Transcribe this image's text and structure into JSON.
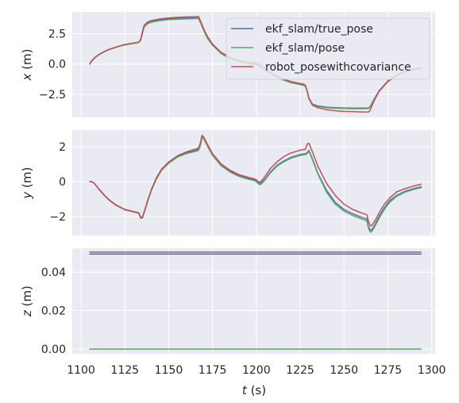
{
  "chart_data": {
    "type": "line",
    "shared_x": {
      "label_var": "t",
      "label_unit": " (s)",
      "range": [
        1095,
        1302
      ],
      "ticks": [
        1100,
        1125,
        1150,
        1175,
        1200,
        1225,
        1250,
        1275,
        1300
      ],
      "tick_labels": [
        "1100",
        "1125",
        "1150",
        "1175",
        "1200",
        "1225",
        "1250",
        "1275",
        "1300"
      ]
    },
    "colors": {
      "ekf_slam/true_pose": "#4c72b0",
      "ekf_slam/pose": "#55a868",
      "robot_posewithcovariance": "#c44e52"
    },
    "legend": {
      "placement": "top-right",
      "entries": [
        "ekf_slam/true_pose",
        "ekf_slam/pose",
        "robot_posewithcovariance"
      ]
    },
    "subplots": [
      {
        "id": "x",
        "ylabel_var": "x",
        "ylabel_unit": " (m)",
        "ylim": [
          -4.4,
          4.3
        ],
        "yticks": [
          2.5,
          0.0,
          -2.5
        ],
        "ytick_labels": [
          "2.5",
          "0.0",
          "−2.5"
        ],
        "series": [
          {
            "name": "ekf_slam/true_pose",
            "x": [
              1105,
              1106,
              1108,
              1111,
              1115,
              1120,
              1125,
              1130,
              1133,
              1134,
              1135,
              1136,
              1138,
              1140,
              1145,
              1150,
              1155,
              1160,
              1165,
              1167,
              1168,
              1170,
              1172,
              1175,
              1180,
              1185,
              1190,
              1195,
              1200,
              1202,
              1205,
              1210,
              1215,
              1220,
              1225,
              1227,
              1228,
              1229,
              1230,
              1232,
              1235,
              1240,
              1245,
              1250,
              1255,
              1260,
              1264,
              1265,
              1266,
              1268,
              1270,
              1275,
              1280,
              1285,
              1290,
              1294
            ],
            "y": [
              0.0,
              0.25,
              0.55,
              0.85,
              1.15,
              1.4,
              1.6,
              1.72,
              1.8,
              2.0,
              2.6,
              3.15,
              3.4,
              3.52,
              3.65,
              3.72,
              3.76,
              3.78,
              3.8,
              3.8,
              3.5,
              2.8,
              2.2,
              1.6,
              0.9,
              0.5,
              0.25,
              0.1,
              0.0,
              -0.15,
              -0.45,
              -0.9,
              -1.25,
              -1.5,
              -1.65,
              -1.7,
              -1.8,
              -2.2,
              -2.8,
              -3.3,
              -3.45,
              -3.55,
              -3.6,
              -3.62,
              -3.63,
              -3.63,
              -3.62,
              -3.5,
              -3.2,
              -2.7,
              -2.2,
              -1.4,
              -0.9,
              -0.6,
              -0.4,
              -0.3
            ]
          },
          {
            "name": "ekf_slam/pose",
            "x": [
              1105,
              1106,
              1108,
              1111,
              1115,
              1120,
              1125,
              1130,
              1133,
              1134,
              1135,
              1136,
              1138,
              1140,
              1145,
              1150,
              1155,
              1160,
              1165,
              1167,
              1168,
              1170,
              1172,
              1175,
              1180,
              1185,
              1190,
              1195,
              1200,
              1202,
              1205,
              1210,
              1215,
              1220,
              1225,
              1227,
              1228,
              1229,
              1230,
              1232,
              1235,
              1240,
              1245,
              1250,
              1255,
              1260,
              1264,
              1265,
              1266,
              1268,
              1270,
              1275,
              1280,
              1285,
              1290,
              1294
            ],
            "y": [
              0.0,
              0.24,
              0.54,
              0.84,
              1.14,
              1.39,
              1.58,
              1.7,
              1.78,
              1.95,
              2.5,
              3.05,
              3.32,
              3.45,
              3.58,
              3.66,
              3.7,
              3.72,
              3.75,
              3.75,
              3.45,
              2.75,
              2.15,
              1.55,
              0.85,
              0.45,
              0.2,
              0.05,
              -0.05,
              -0.2,
              -0.5,
              -0.95,
              -1.3,
              -1.55,
              -1.7,
              -1.75,
              -1.85,
              -2.25,
              -2.85,
              -3.35,
              -3.5,
              -3.6,
              -3.65,
              -3.67,
              -3.68,
              -3.68,
              -3.67,
              -3.55,
              -3.25,
              -2.75,
              -2.25,
              -1.45,
              -0.95,
              -0.65,
              -0.45,
              -0.35
            ]
          },
          {
            "name": "robot_posewithcovariance",
            "x": [
              1105,
              1106,
              1108,
              1111,
              1115,
              1120,
              1125,
              1130,
              1133,
              1134,
              1135,
              1136,
              1138,
              1140,
              1145,
              1150,
              1155,
              1160,
              1165,
              1167,
              1168,
              1170,
              1172,
              1175,
              1180,
              1185,
              1190,
              1195,
              1200,
              1202,
              1205,
              1210,
              1215,
              1220,
              1225,
              1227,
              1228,
              1229,
              1230,
              1232,
              1235,
              1240,
              1245,
              1250,
              1255,
              1260,
              1264,
              1265,
              1266,
              1268,
              1270,
              1275,
              1280,
              1285,
              1290,
              1294
            ],
            "y": [
              0.0,
              0.26,
              0.56,
              0.86,
              1.16,
              1.41,
              1.61,
              1.73,
              1.81,
              2.02,
              2.65,
              3.2,
              3.46,
              3.58,
              3.72,
              3.8,
              3.85,
              3.88,
              3.9,
              3.92,
              3.6,
              2.9,
              2.3,
              1.65,
              0.95,
              0.55,
              0.3,
              0.15,
              0.08,
              -0.08,
              -0.4,
              -0.85,
              -1.2,
              -1.45,
              -1.6,
              -1.65,
              -1.75,
              -2.2,
              -2.85,
              -3.4,
              -3.6,
              -3.75,
              -3.85,
              -3.9,
              -3.93,
              -3.95,
              -3.96,
              -3.8,
              -3.4,
              -2.8,
              -2.25,
              -1.45,
              -0.95,
              -0.65,
              -0.45,
              -0.35
            ]
          }
        ]
      },
      {
        "id": "y",
        "ylabel_var": "y",
        "ylabel_unit": " (m)",
        "ylim": [
          -3.1,
          2.95
        ],
        "yticks": [
          2,
          0,
          -2
        ],
        "ytick_labels": [
          "2",
          "0",
          "−2"
        ],
        "series": [
          {
            "name": "ekf_slam/true_pose",
            "x": [
              1105,
              1106,
              1107,
              1108,
              1110,
              1113,
              1116,
              1120,
              1125,
              1130,
              1133,
              1134,
              1135,
              1136,
              1138,
              1140,
              1143,
              1146,
              1150,
              1155,
              1160,
              1165,
              1167,
              1168,
              1169,
              1170,
              1172,
              1175,
              1180,
              1185,
              1190,
              1195,
              1199,
              1200,
              1201,
              1202,
              1203,
              1205,
              1208,
              1212,
              1216,
              1220,
              1225,
              1228,
              1229,
              1230,
              1232,
              1235,
              1240,
              1245,
              1250,
              1255,
              1260,
              1263,
              1264,
              1265,
              1266,
              1268,
              1270,
              1273,
              1276,
              1280,
              1285,
              1290,
              1294
            ],
            "y": [
              0,
              0,
              -0.05,
              -0.15,
              -0.4,
              -0.75,
              -1.05,
              -1.35,
              -1.6,
              -1.72,
              -1.8,
              -2.05,
              -2.05,
              -1.75,
              -1.1,
              -0.5,
              0.2,
              0.7,
              1.1,
              1.45,
              1.65,
              1.78,
              1.85,
              2.1,
              2.6,
              2.5,
              2.1,
              1.55,
              0.95,
              0.6,
              0.35,
              0.2,
              0.1,
              0.05,
              -0.05,
              -0.1,
              -0.05,
              0.15,
              0.55,
              0.95,
              1.2,
              1.4,
              1.55,
              1.6,
              1.65,
              1.8,
              1.3,
              0.5,
              -0.5,
              -1.2,
              -1.6,
              -1.85,
              -2.05,
              -2.15,
              -2.6,
              -2.8,
              -2.75,
              -2.4,
              -2.0,
              -1.5,
              -1.1,
              -0.8,
              -0.55,
              -0.4,
              -0.3
            ]
          },
          {
            "name": "ekf_slam/pose",
            "x": [
              1105,
              1106,
              1107,
              1108,
              1110,
              1113,
              1116,
              1120,
              1125,
              1130,
              1133,
              1134,
              1135,
              1136,
              1138,
              1140,
              1143,
              1146,
              1150,
              1155,
              1160,
              1165,
              1167,
              1168,
              1169,
              1170,
              1172,
              1175,
              1180,
              1185,
              1190,
              1195,
              1199,
              1200,
              1201,
              1202,
              1203,
              1205,
              1208,
              1212,
              1216,
              1220,
              1225,
              1228,
              1229,
              1230,
              1232,
              1235,
              1240,
              1245,
              1250,
              1255,
              1260,
              1263,
              1264,
              1265,
              1266,
              1268,
              1270,
              1273,
              1276,
              1280,
              1285,
              1290,
              1294
            ],
            "y": [
              0,
              0,
              -0.05,
              -0.16,
              -0.42,
              -0.77,
              -1.07,
              -1.37,
              -1.62,
              -1.74,
              -1.82,
              -2.1,
              -2.1,
              -1.8,
              -1.15,
              -0.55,
              0.15,
              0.65,
              1.05,
              1.4,
              1.6,
              1.72,
              1.78,
              2.05,
              2.55,
              2.45,
              2.05,
              1.5,
              0.9,
              0.55,
              0.3,
              0.15,
              0.05,
              0.0,
              -0.12,
              -0.18,
              -0.12,
              0.1,
              0.5,
              0.9,
              1.15,
              1.35,
              1.5,
              1.55,
              1.6,
              1.75,
              1.25,
              0.45,
              -0.6,
              -1.3,
              -1.7,
              -1.95,
              -2.15,
              -2.25,
              -2.7,
              -2.9,
              -2.85,
              -2.5,
              -2.1,
              -1.6,
              -1.2,
              -0.85,
              -0.6,
              -0.45,
              -0.35
            ]
          },
          {
            "name": "robot_posewithcovariance",
            "x": [
              1105,
              1106,
              1107,
              1108,
              1110,
              1113,
              1116,
              1120,
              1125,
              1130,
              1133,
              1134,
              1135,
              1136,
              1138,
              1140,
              1143,
              1146,
              1150,
              1155,
              1160,
              1165,
              1167,
              1168,
              1169,
              1170,
              1172,
              1175,
              1180,
              1185,
              1190,
              1195,
              1199,
              1200,
              1201,
              1202,
              1203,
              1205,
              1208,
              1212,
              1216,
              1220,
              1225,
              1228,
              1229,
              1230,
              1232,
              1235,
              1240,
              1245,
              1250,
              1255,
              1260,
              1263,
              1264,
              1265,
              1266,
              1268,
              1270,
              1273,
              1276,
              1280,
              1285,
              1290,
              1294
            ],
            "y": [
              0,
              0,
              -0.05,
              -0.15,
              -0.4,
              -0.75,
              -1.05,
              -1.35,
              -1.6,
              -1.72,
              -1.8,
              -2.05,
              -2.05,
              -1.75,
              -1.1,
              -0.5,
              0.22,
              0.72,
              1.12,
              1.48,
              1.7,
              1.85,
              1.92,
              2.2,
              2.65,
              2.55,
              2.15,
              1.6,
              1.0,
              0.65,
              0.4,
              0.25,
              0.15,
              0.1,
              0.0,
              -0.05,
              0.05,
              0.3,
              0.75,
              1.15,
              1.45,
              1.65,
              1.8,
              1.85,
              2.15,
              2.2,
              1.7,
              0.9,
              -0.1,
              -0.8,
              -1.3,
              -1.6,
              -1.8,
              -1.9,
              -2.3,
              -2.55,
              -2.5,
              -2.2,
              -1.8,
              -1.3,
              -0.95,
              -0.6,
              -0.4,
              -0.25,
              -0.15
            ]
          }
        ]
      },
      {
        "id": "z",
        "ylabel_var": "z",
        "ylabel_unit": " (m)",
        "ylim": [
          -0.0025,
          0.0525
        ],
        "yticks": [
          0.04,
          0.02,
          0.0
        ],
        "ytick_labels": [
          "0.04",
          "0.02",
          "0.00"
        ],
        "series": [
          {
            "name": "ekf_slam/true_pose",
            "x": [
              1105,
              1294
            ],
            "y": [
              0.0495,
              0.0495
            ]
          },
          {
            "name": "ekf_slam/pose",
            "x": [
              1105,
              1294
            ],
            "y": [
              0.0,
              0.0
            ]
          },
          {
            "name": "robot_posewithcovariance",
            "x": [
              1105,
              1294
            ],
            "y": [
              0.0505,
              0.0505
            ]
          }
        ]
      }
    ]
  }
}
